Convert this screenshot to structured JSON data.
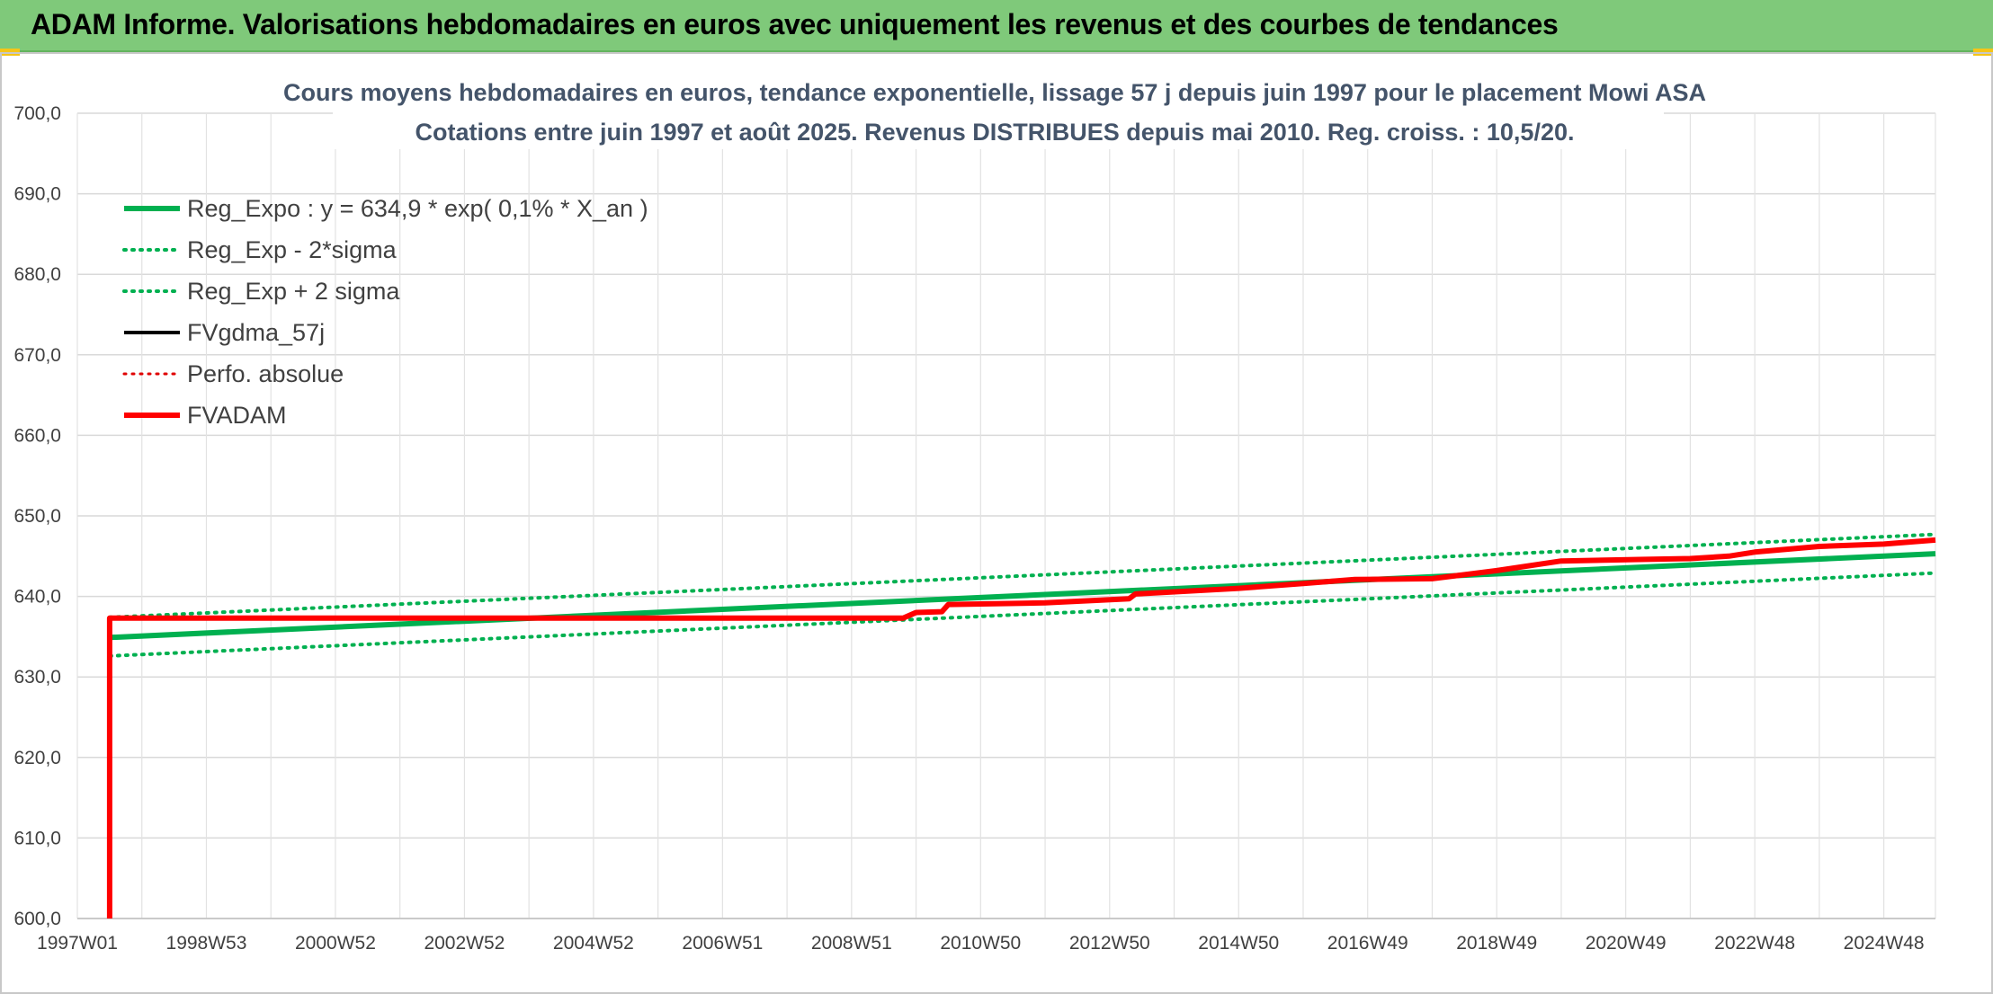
{
  "banner": {
    "title": "ADAM Informe. Valorisations hebdomadaires en euros avec uniquement les revenus et des courbes de tendances"
  },
  "chart_data": {
    "type": "line",
    "title_line1": "Cours moyens hebdomadaires en euros, tendance exponentielle, lissage 57 j depuis juin 1997 pour le placement Mowi ASA",
    "title_line2": "Cotations entre juin 1997 et août 2025. Revenus DISTRIBUES depuis mai 2010. Reg. croiss. : 10,5/20.",
    "xlim": [
      1997.0,
      2025.8
    ],
    "ylim": [
      600,
      700
    ],
    "y_ticks": [
      "700,0",
      "690,0",
      "680,0",
      "670,0",
      "660,0",
      "650,0",
      "640,0",
      "630,0",
      "620,0",
      "610,0",
      "600,0"
    ],
    "x_ticks": [
      {
        "label": "1997W01",
        "x": 1997.0
      },
      {
        "label": "1998W53",
        "x": 1999.0
      },
      {
        "label": "2000W52",
        "x": 2001.0
      },
      {
        "label": "2002W52",
        "x": 2003.0
      },
      {
        "label": "2004W52",
        "x": 2005.0
      },
      {
        "label": "2006W51",
        "x": 2007.0
      },
      {
        "label": "2008W51",
        "x": 2009.0
      },
      {
        "label": "2010W50",
        "x": 2011.0
      },
      {
        "label": "2012W50",
        "x": 2013.0
      },
      {
        "label": "2014W50",
        "x": 2015.0
      },
      {
        "label": "2016W49",
        "x": 2017.0
      },
      {
        "label": "2018W49",
        "x": 2019.0
      },
      {
        "label": "2020W49",
        "x": 2021.0
      },
      {
        "label": "2022W48",
        "x": 2023.0
      },
      {
        "label": "2024W48",
        "x": 2025.0
      }
    ],
    "grid": true,
    "legend_position": "top-left",
    "series": [
      {
        "name": "Reg_Expo : y = 634,9 * exp( 0,1% *  X_an )",
        "color": "#00b050",
        "style": "solid",
        "width": 6,
        "points": [
          [
            1997.5,
            634.9
          ],
          [
            2025.8,
            645.3
          ]
        ]
      },
      {
        "name": "Reg_Exp - 2*sigma",
        "color": "#00b050",
        "style": "dotted",
        "width": 4,
        "points": [
          [
            1997.5,
            632.6
          ],
          [
            2025.8,
            642.9
          ]
        ]
      },
      {
        "name": "Reg_Exp + 2 sigma",
        "color": "#00b050",
        "style": "dotted",
        "width": 4,
        "points": [
          [
            1997.5,
            637.4
          ],
          [
            2025.8,
            647.7
          ]
        ]
      },
      {
        "name": "FVgdma_57j",
        "color": "#000000",
        "style": "solid",
        "width": 4,
        "points": []
      },
      {
        "name": "Perfo. absolue",
        "color": "#e00000",
        "style": "dotted",
        "width": 3,
        "points": []
      },
      {
        "name": "FVADAM",
        "color": "#ff0000",
        "style": "solid",
        "width": 6,
        "points": [
          [
            1997.5,
            600.0
          ],
          [
            1997.5,
            637.3
          ],
          [
            2009.8,
            637.3
          ],
          [
            2010.0,
            638.0
          ],
          [
            2010.4,
            638.1
          ],
          [
            2010.5,
            639.0
          ],
          [
            2012.0,
            639.2
          ],
          [
            2013.3,
            639.7
          ],
          [
            2013.4,
            640.3
          ],
          [
            2015.0,
            641.0
          ],
          [
            2016.0,
            641.6
          ],
          [
            2016.8,
            642.1
          ],
          [
            2018.0,
            642.2
          ],
          [
            2019.0,
            643.2
          ],
          [
            2020.0,
            644.4
          ],
          [
            2021.3,
            644.6
          ],
          [
            2022.0,
            644.7
          ],
          [
            2022.6,
            645.0
          ],
          [
            2023.0,
            645.5
          ],
          [
            2024.0,
            646.2
          ],
          [
            2025.0,
            646.5
          ],
          [
            2025.8,
            647.0
          ]
        ]
      }
    ]
  }
}
